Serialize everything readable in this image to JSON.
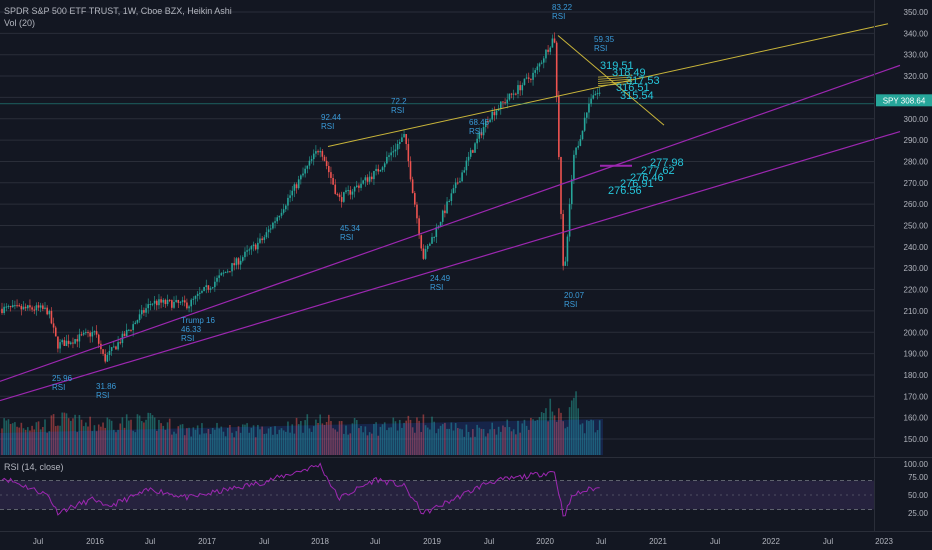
{
  "header": {
    "title": "SPDR S&P 500 ETF TRUST, 1W, Cboe BZX, Heikin Ashi",
    "vol": "Vol (20)",
    "rsi": "RSI (14, close)"
  },
  "price_axis": {
    "ticks": [
      "350.00",
      "340.00",
      "330.00",
      "320.00",
      "310.00",
      "300.00",
      "290.00",
      "280.00",
      "270.00",
      "260.00",
      "250.00",
      "240.00",
      "230.00",
      "220.00",
      "210.00",
      "200.00",
      "190.00",
      "180.00",
      "170.00",
      "160.00",
      "150.00"
    ],
    "last_price_label": "SPY 308.64"
  },
  "rsi_axis": {
    "ticks": [
      "100.00",
      "75.00",
      "50.00",
      "25.00"
    ]
  },
  "time_axis": {
    "labels": [
      "Jul",
      "2016",
      "Jul",
      "2017",
      "Jul",
      "2018",
      "Jul",
      "2019",
      "Jul",
      "2020",
      "Jul",
      "2021",
      "Jul",
      "2022",
      "Jul",
      "2023"
    ]
  },
  "annotations": [
    {
      "id": "a1",
      "lines": [
        "25.96",
        "RSI"
      ]
    },
    {
      "id": "a2",
      "lines": [
        "31.86",
        "RSI"
      ]
    },
    {
      "id": "a3",
      "lines": [
        "Trump 16",
        "46.33",
        "RSI"
      ]
    },
    {
      "id": "a4",
      "lines": [
        "92.44",
        "RSI"
      ]
    },
    {
      "id": "a5",
      "lines": [
        "45.34",
        "RSI"
      ]
    },
    {
      "id": "a6",
      "lines": [
        "72.2",
        "RSI"
      ]
    },
    {
      "id": "a7",
      "lines": [
        "68.45",
        "RSI"
      ]
    },
    {
      "id": "a8",
      "lines": [
        "24.49",
        "RSI"
      ]
    },
    {
      "id": "a9",
      "lines": [
        "83.22",
        "RSI"
      ]
    },
    {
      "id": "a10",
      "lines": [
        "59.35",
        "RSI"
      ]
    },
    {
      "id": "a11",
      "lines": [
        "20.07",
        "RSI"
      ]
    }
  ],
  "fib_labels": {
    "upper": [
      "319.51",
      "318.49",
      "317.53",
      "316.51",
      "315.54"
    ],
    "lower": [
      "277.98",
      "277.62",
      "276.46",
      "276.91",
      "276.56"
    ]
  },
  "colors": {
    "up": "#26a69a",
    "down": "#ef5350",
    "trend": "#c9b53a",
    "channel": "#9c27b0",
    "annotation": "#3a9bd9",
    "fib": "#26c6da",
    "bg": "#131722",
    "grid": "#2a2e39"
  },
  "chart_data": [
    {
      "type": "line",
      "title": "SPDR S&P 500 ETF TRUST, 1W, Cboe BZX, Heikin Ashi",
      "x": [
        "2015-07",
        "2015-08",
        "2015-09",
        "2016-01",
        "2016-02",
        "2016-07",
        "2016-11",
        "2017-07",
        "2018-01",
        "2018-03",
        "2018-07",
        "2018-10",
        "2018-12",
        "2019-05",
        "2019-07",
        "2019-12",
        "2020-02",
        "2020-03",
        "2020-04",
        "2020-06"
      ],
      "series": [
        {
          "values": [
            211,
            210,
            194,
            200,
            187,
            214,
            213,
            244,
            287,
            262,
            275,
            292,
            235,
            283,
            301,
            322,
            339,
            222,
            280,
            312
          ]
        }
      ],
      "ylim": [
        150,
        350
      ],
      "last_price": 308.64,
      "volume": [
        122,
        120,
        142,
        116,
        130,
        132,
        102,
        100,
        136,
        119,
        110,
        126,
        128,
        99,
        107,
        120,
        192,
        96,
        137,
        109
      ],
      "volume_avg": 113,
      "volume_ylim": [
        0,
        200
      ]
    },
    {
      "type": "line",
      "title": "RSI (14, close)",
      "x": [
        "2015-07",
        "2015-08",
        "2015-09",
        "2016-01",
        "2016-02",
        "2016-07",
        "2016-11",
        "2017-07",
        "2018-01",
        "2018-03",
        "2018-07",
        "2018-10",
        "2018-12",
        "2019-05",
        "2019-07",
        "2019-12",
        "2020-02",
        "2020-03",
        "2020-04",
        "2020-06"
      ],
      "series": [
        {
          "values": [
            55,
            50,
            26,
            45,
            32,
            58,
            46,
            68,
            92,
            45,
            72,
            62,
            24,
            55,
            68,
            78,
            83,
            20,
            50,
            59
          ]
        }
      ],
      "ylim": [
        0,
        100
      ],
      "bands": [
        30,
        70
      ]
    }
  ]
}
